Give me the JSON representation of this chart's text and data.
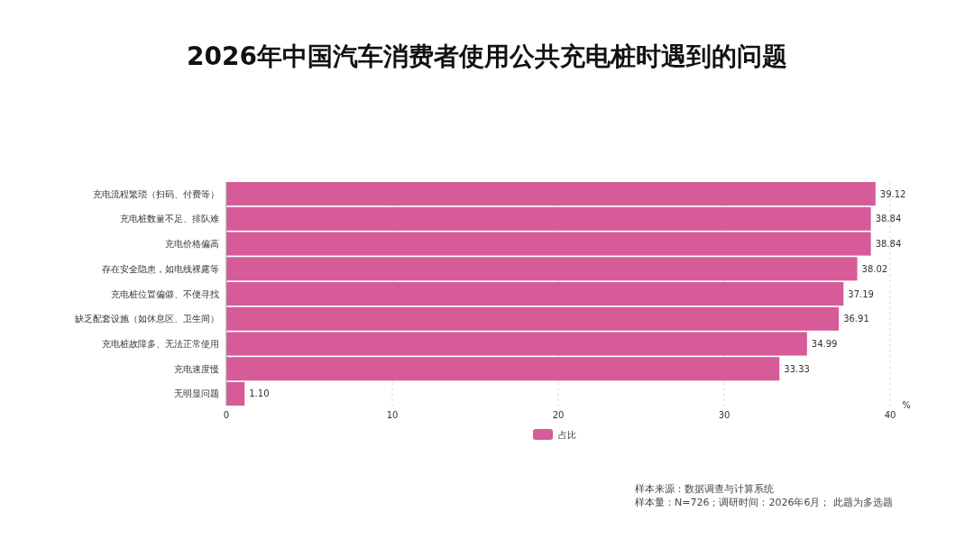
{
  "chart_data": {
    "type": "bar",
    "orientation": "horizontal",
    "title": "2026年中国汽车消费者使用公共充电桩时遇到的问题",
    "xlabel": "%",
    "categories": [
      "充电流程繁琐（扫码、付费等）",
      "充电桩数量不足、排队难",
      "充电价格偏高",
      "存在安全隐患，如电线裸露等",
      "充电桩位置偏僻、不便寻找",
      "缺乏配套设施（如休息区、卫生间）",
      "充电桩故障多、无法正常使用",
      "充电速度慢",
      "无明显问题"
    ],
    "series": [
      {
        "name": "占比",
        "color": "#d65b98",
        "values": [
          39.12,
          38.84,
          38.84,
          38.02,
          37.19,
          36.91,
          34.99,
          33.33,
          1.1
        ],
        "value_labels": [
          "39.12",
          "38.84",
          "38.84",
          "38.02",
          "37.19",
          "36.91",
          "34.99",
          "33.33",
          "1.10"
        ]
      }
    ],
    "xlim": [
      0,
      40
    ],
    "xticks": [
      0,
      10,
      20,
      30,
      40
    ],
    "grid": "x",
    "legend": "bottom",
    "annotations": [
      "样本来源：数据调查与计算系统",
      "样本量：N=726；调研时间：2026年6月； 此题为多选题"
    ]
  }
}
